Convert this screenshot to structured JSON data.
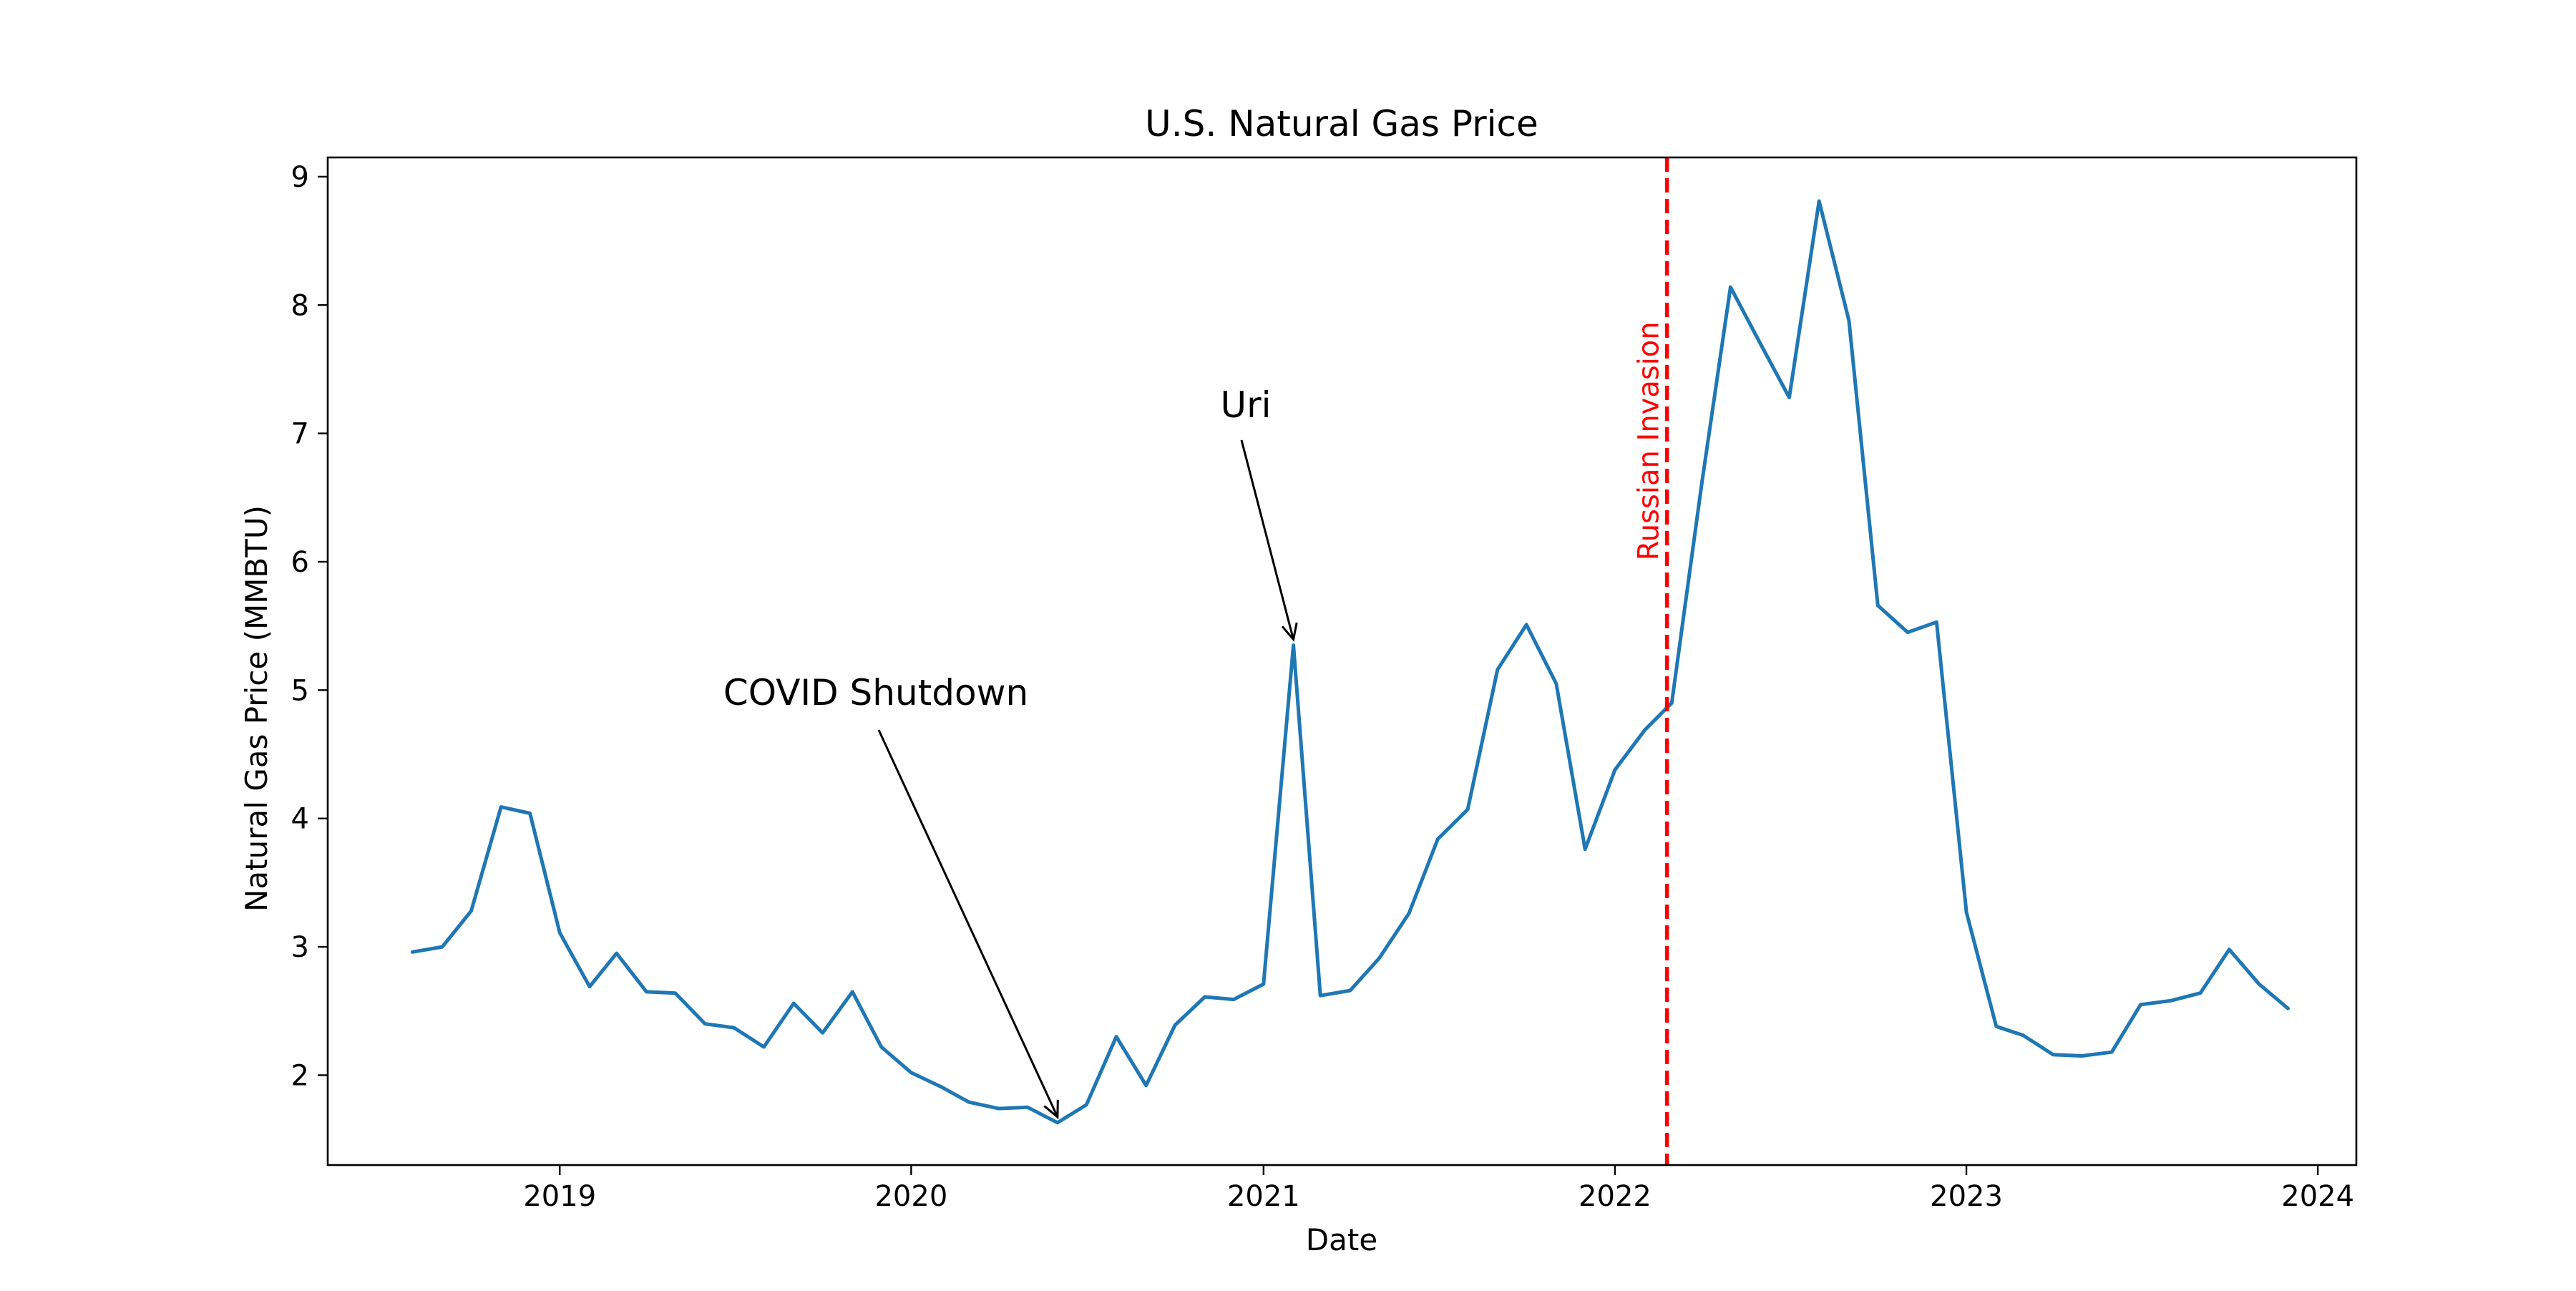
{
  "chart_data": {
    "type": "line",
    "title": "U.S. Natural Gas Price",
    "xlabel": "Date",
    "ylabel": "Natural Gas Price (MMBTU)",
    "x_ticks": [
      "2019",
      "2020",
      "2021",
      "2022",
      "2023",
      "2024"
    ],
    "y_ticks": [
      "2",
      "3",
      "4",
      "5",
      "6",
      "7",
      "8",
      "9"
    ],
    "xlim": [
      "2018-05-05",
      "2024-02-10"
    ],
    "ylim": [
      1.3,
      9.15
    ],
    "grid": false,
    "series": [
      {
        "color": "#1f77b4",
        "x": [
          "2018-08-01",
          "2018-09-01",
          "2018-10-01",
          "2018-11-01",
          "2018-12-01",
          "2019-01-01",
          "2019-02-01",
          "2019-03-01",
          "2019-04-01",
          "2019-05-01",
          "2019-06-01",
          "2019-07-01",
          "2019-08-01",
          "2019-09-01",
          "2019-10-01",
          "2019-11-01",
          "2019-12-01",
          "2020-01-01",
          "2020-02-01",
          "2020-03-01",
          "2020-04-01",
          "2020-05-01",
          "2020-06-01",
          "2020-07-01",
          "2020-08-01",
          "2020-09-01",
          "2020-10-01",
          "2020-11-01",
          "2020-12-01",
          "2021-01-01",
          "2021-02-01",
          "2021-03-01",
          "2021-04-01",
          "2021-05-01",
          "2021-06-01",
          "2021-07-01",
          "2021-08-01",
          "2021-09-01",
          "2021-10-01",
          "2021-11-01",
          "2021-12-01",
          "2022-01-01",
          "2022-02-01",
          "2022-03-01",
          "2022-04-01",
          "2022-05-01",
          "2022-06-01",
          "2022-07-01",
          "2022-08-01",
          "2022-09-01",
          "2022-10-01",
          "2022-11-01",
          "2022-12-01",
          "2023-01-01",
          "2023-02-01",
          "2023-03-01",
          "2023-04-01",
          "2023-05-01",
          "2023-06-01",
          "2023-07-01",
          "2023-08-01",
          "2023-09-01",
          "2023-10-01",
          "2023-11-01",
          "2023-12-01"
        ],
        "values": [
          2.96,
          3.0,
          3.28,
          4.09,
          4.04,
          3.11,
          2.69,
          2.95,
          2.65,
          2.64,
          2.4,
          2.37,
          2.22,
          2.56,
          2.33,
          2.65,
          2.22,
          2.02,
          1.91,
          1.79,
          1.74,
          1.75,
          1.63,
          1.77,
          2.3,
          1.92,
          2.39,
          2.61,
          2.59,
          2.71,
          5.35,
          2.62,
          2.66,
          2.91,
          3.26,
          3.84,
          4.07,
          5.16,
          5.51,
          5.05,
          3.76,
          4.38,
          4.69,
          4.9,
          6.6,
          8.14,
          7.7,
          7.28,
          8.81,
          7.88,
          5.66,
          5.45,
          5.53,
          3.27,
          2.38,
          2.31,
          2.16,
          2.15,
          2.18,
          2.55,
          2.58,
          2.64,
          2.98,
          2.71,
          2.52
        ]
      }
    ],
    "vline": {
      "x": "2022-02-24",
      "label": "Russian Invasion",
      "color": "#ff0000",
      "style": "dashed"
    },
    "annotations": [
      {
        "text": "COVID Shutdown",
        "point": {
          "x": "2020-06-01",
          "y": 1.63
        }
      },
      {
        "text": "Uri",
        "point": {
          "x": "2021-02-01",
          "y": 5.35
        }
      }
    ]
  }
}
